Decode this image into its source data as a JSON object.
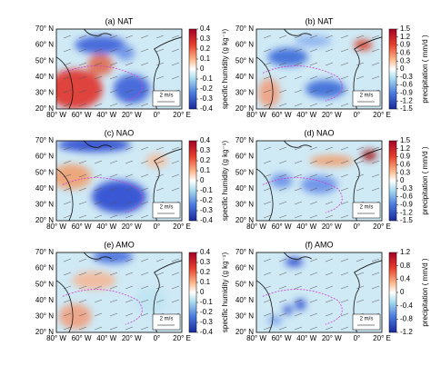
{
  "panels": [
    {
      "title": "(a) NAT",
      "yticks": [
        "70° N",
        "60° N",
        "50° N",
        "40° N",
        "30° N",
        "20° N"
      ],
      "xticks": [
        "80° W",
        "60° W",
        "40° W",
        "20° W",
        "0°",
        "20° E"
      ],
      "arrow_scale": "2 m/s",
      "colorbar": {
        "label": "specific humidity (g kg⁻¹)",
        "lim": [
          -0.4,
          0.4
        ],
        "ticks": [
          0.4,
          0.3,
          0.2,
          0.1,
          0,
          -0.1,
          -0.2,
          -0.3,
          -0.4
        ]
      }
    },
    {
      "title": "(b) NAT",
      "yticks": [
        "70° N",
        "60° N",
        "50° N",
        "40° N",
        "30° N",
        "20° N"
      ],
      "xticks": [
        "80° W",
        "60° W",
        "40° W",
        "20° W",
        "0°",
        "20° E"
      ],
      "arrow_scale": "2 m/s",
      "colorbar": {
        "label": "precipitation ( mm/d )",
        "lim": [
          -1.5,
          1.5
        ],
        "ticks": [
          1.5,
          1.2,
          0.9,
          0.6,
          0.3,
          0,
          -0.3,
          -0.6,
          -0.9,
          -1.2,
          -1.5
        ]
      }
    },
    {
      "title": "(c) NAO",
      "yticks": [
        "70° N",
        "60° N",
        "50° N",
        "40° N",
        "30° N",
        "20° N"
      ],
      "xticks": [
        "80° W",
        "60° W",
        "40° W",
        "20° W",
        "0°",
        "20° E"
      ],
      "arrow_scale": "2 m/s",
      "colorbar": {
        "label": "specific humidity (g kg⁻¹)",
        "lim": [
          -0.4,
          0.4
        ],
        "ticks": [
          0.4,
          0.3,
          0.2,
          0.1,
          0,
          -0.1,
          -0.2,
          -0.3,
          -0.4
        ]
      }
    },
    {
      "title": "(d) NAO",
      "yticks": [
        "70° N",
        "60° N",
        "50° N",
        "40° N",
        "30° N",
        "20° N"
      ],
      "xticks": [
        "80° W",
        "60° W",
        "40° W",
        "20° W",
        "0°",
        "20° E"
      ],
      "arrow_scale": "2 m/s",
      "colorbar": {
        "label": "precipitation ( mm/d )",
        "lim": [
          -1.5,
          1.5
        ],
        "ticks": [
          1.5,
          1.2,
          0.9,
          0.6,
          0.3,
          0,
          -0.3,
          -0.6,
          -0.9,
          -1.2,
          -1.5
        ]
      }
    },
    {
      "title": "(e) AMO",
      "yticks": [
        "70° N",
        "60° N",
        "50° N",
        "40° N",
        "30° N",
        "20° N"
      ],
      "xticks": [
        "80° W",
        "60° W",
        "40° W",
        "20° W",
        "0°",
        "20° E"
      ],
      "arrow_scale": "2 m/s",
      "colorbar": {
        "label": "specific humidity (g kg⁻¹)",
        "lim": [
          -0.4,
          0.4
        ],
        "ticks": [
          0.4,
          0.3,
          0.2,
          0.1,
          0,
          -0.1,
          -0.2,
          -0.3,
          -0.4
        ]
      }
    },
    {
      "title": "(f) AMO",
      "yticks": [
        "70° N",
        "60° N",
        "50° N",
        "40° N",
        "30° N",
        "20° N"
      ],
      "xticks": [
        "80° W",
        "60° W",
        "40° W",
        "20° W",
        "0°",
        "20° E"
      ],
      "arrow_scale": "2 m/s",
      "colorbar": {
        "label": "precipitation ( mm/d )",
        "lim": [
          -1.2,
          1.2
        ],
        "ticks": [
          1.2,
          0.8,
          0.4,
          0,
          -0.4,
          -0.8,
          -1.2
        ]
      }
    }
  ]
}
